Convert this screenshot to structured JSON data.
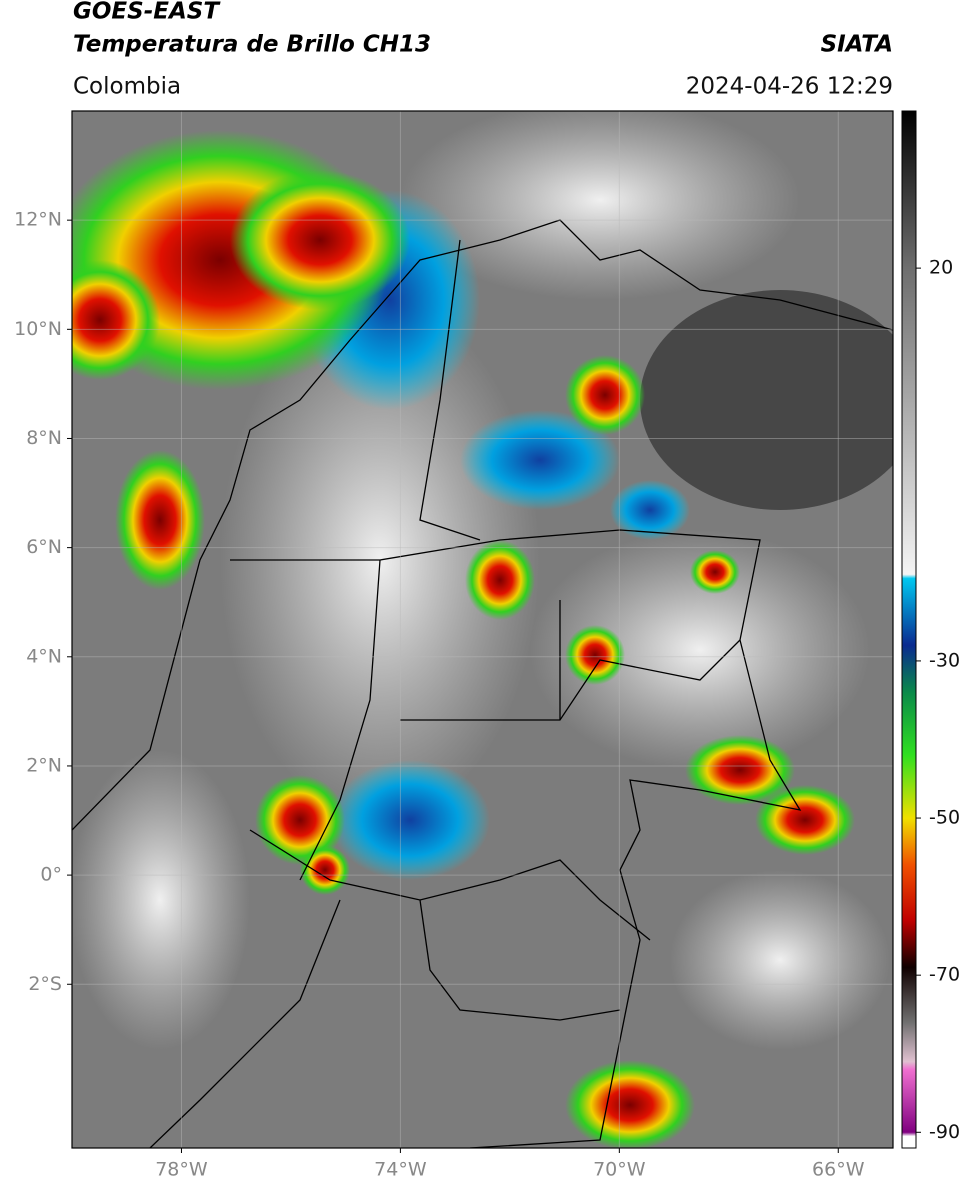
{
  "header": {
    "title": "GOES-EAST",
    "subtitle": "Temperatura de Brillo CH13",
    "region": "Colombia",
    "source": "SIATA",
    "datetime": "2024-04-26 12:29"
  },
  "map": {
    "xlim": [
      -80,
      -65
    ],
    "ylim": [
      -5,
      14
    ],
    "xticks": [
      {
        "value": -78,
        "label": "78°W"
      },
      {
        "value": -74,
        "label": "74°W"
      },
      {
        "value": -70,
        "label": "70°W"
      },
      {
        "value": -66,
        "label": "66°W"
      }
    ],
    "yticks": [
      {
        "value": 12,
        "label": "12°N"
      },
      {
        "value": 10,
        "label": "10°N"
      },
      {
        "value": 8,
        "label": "8°N"
      },
      {
        "value": 6,
        "label": "6°N"
      },
      {
        "value": 4,
        "label": "4°N"
      },
      {
        "value": 2,
        "label": "2°N"
      },
      {
        "value": 0,
        "label": "0°"
      },
      {
        "value": -2,
        "label": "2°S"
      }
    ],
    "grid": true
  },
  "colorbar": {
    "range": [
      -92,
      40
    ],
    "ticks": [
      20,
      -30,
      -50,
      -70,
      -90
    ],
    "stops": [
      {
        "value": 40,
        "color": "#000000"
      },
      {
        "value": 20,
        "color": "#6e6e6e"
      },
      {
        "value": -19,
        "color": "#f4f4f4"
      },
      {
        "value": -19.5,
        "color": "#00c8f0"
      },
      {
        "value": -28,
        "color": "#0a2a90"
      },
      {
        "value": -34,
        "color": "#0a8a4a"
      },
      {
        "value": -42,
        "color": "#30e020"
      },
      {
        "value": -50,
        "color": "#f0e000"
      },
      {
        "value": -56,
        "color": "#f05000"
      },
      {
        "value": -63,
        "color": "#c00000"
      },
      {
        "value": -69,
        "color": "#100000"
      },
      {
        "value": -76,
        "color": "#707070"
      },
      {
        "value": -81,
        "color": "#e0c0d0"
      },
      {
        "value": -82,
        "color": "#f070d0"
      },
      {
        "value": -90,
        "color": "#800080"
      },
      {
        "value": -90.5,
        "color": "#ffffff"
      },
      {
        "value": -92,
        "color": "#ffffff"
      }
    ]
  }
}
